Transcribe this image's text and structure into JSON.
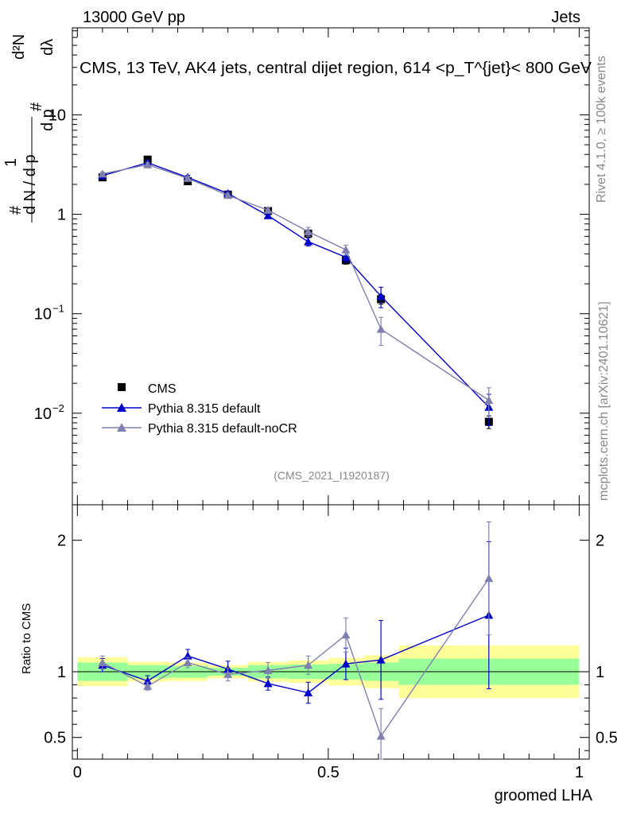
{
  "header": {
    "left": "13000 GeV pp",
    "right": "Jets"
  },
  "side_labels": {
    "rivet": "Rivet 4.1.0, ≥ 100k events",
    "mcplots": "mcplots.cern.ch [arXiv:2401.10621]"
  },
  "colors": {
    "cms": "#000000",
    "pythia_default": "#0000cc",
    "pythia_nocr": "#8080b0",
    "band_inner": "#99ff99",
    "band_outer": "#ffff99"
  },
  "chart_data": [
    {
      "type": "scatter",
      "scale": "log",
      "title": "CMS, 13 TeV, AK4 jets, central dijet region, 614 <p_T^{jet}< 800 GeV",
      "ylabel": "1/(dN/dp_T) d²N/(dp_T dλ)",
      "ylabel_parts": {
        "one": "1",
        "hash": "#",
        "top": "d²N",
        "dpt": "d p",
        "sub": "T",
        "lam": "dλ",
        "bottom": "d N / d p"
      },
      "annotation": "(CMS_2021_I1920187)",
      "ylim": [
        0.0012,
        75
      ],
      "y_ticks": [
        {
          "v": 10,
          "label": "10"
        },
        {
          "v": 1,
          "label": "1"
        },
        {
          "v": 0.1,
          "label": "10",
          "exp": "−1"
        },
        {
          "v": 0.01,
          "label": "10",
          "exp": "−2"
        }
      ],
      "legend": [
        "CMS",
        "Pythia 8.315 default",
        "Pythia 8.315 default-noCR"
      ],
      "series": [
        {
          "name": "CMS",
          "marker": "square",
          "x": [
            0.05,
            0.14,
            0.22,
            0.3,
            0.38,
            0.46,
            0.535,
            0.605,
            0.82
          ],
          "y": [
            2.35,
            3.55,
            2.15,
            1.58,
            1.08,
            0.64,
            0.345,
            0.14,
            0.0082
          ],
          "err": [
            0.12,
            0.18,
            0.11,
            0.08,
            0.06,
            0.05,
            0.03,
            0.015,
            0.0012
          ]
        },
        {
          "name": "Pythia 8.315 default",
          "marker": "triangle",
          "x": [
            0.05,
            0.14,
            0.22,
            0.3,
            0.38,
            0.46,
            0.535,
            0.605,
            0.82
          ],
          "y": [
            2.45,
            3.3,
            2.35,
            1.62,
            0.97,
            0.53,
            0.37,
            0.15,
            0.0115
          ],
          "err": [
            0.1,
            0.15,
            0.12,
            0.08,
            0.06,
            0.05,
            0.04,
            0.035,
            0.004
          ]
        },
        {
          "name": "Pythia 8.315 default-noCR",
          "marker": "triangle",
          "x": [
            0.05,
            0.14,
            0.22,
            0.3,
            0.38,
            0.46,
            0.535,
            0.605,
            0.82
          ],
          "y": [
            2.55,
            3.15,
            2.3,
            1.55,
            1.1,
            0.67,
            0.44,
            0.07,
            0.0135
          ],
          "err": [
            0.1,
            0.14,
            0.11,
            0.08,
            0.07,
            0.07,
            0.05,
            0.022,
            0.0045
          ]
        }
      ]
    },
    {
      "type": "scatter",
      "title": "",
      "xlabel": "groomed LHA",
      "ylabel": "Ratio to CMS",
      "xlim": [
        -0.01,
        1.02
      ],
      "ylim": [
        0.335,
        2.27
      ],
      "x_ticks": [
        {
          "v": 0,
          "label": "0"
        },
        {
          "v": 0.5,
          "label": "0.5"
        },
        {
          "v": 1,
          "label": "1"
        }
      ],
      "y_ticks": [
        {
          "v": 2,
          "label": "2"
        },
        {
          "v": 1,
          "label": "1"
        },
        {
          "v": 0.5,
          "label": "0.5"
        }
      ],
      "bands": {
        "bins": [
          [
            0.0,
            0.1
          ],
          [
            0.1,
            0.18
          ],
          [
            0.18,
            0.26
          ],
          [
            0.26,
            0.34
          ],
          [
            0.34,
            0.42
          ],
          [
            0.42,
            0.5
          ],
          [
            0.5,
            0.57
          ],
          [
            0.57,
            0.64
          ],
          [
            0.64,
            1.0
          ]
        ],
        "inner": [
          0.07,
          0.05,
          0.045,
          0.03,
          0.05,
          0.055,
          0.06,
          0.07,
          0.1
        ],
        "outer": [
          0.11,
          0.075,
          0.07,
          0.05,
          0.075,
          0.085,
          0.105,
          0.125,
          0.2
        ]
      },
      "series": [
        {
          "name": "Pythia 8.315 default",
          "x": [
            0.05,
            0.14,
            0.22,
            0.3,
            0.38,
            0.46,
            0.535,
            0.605,
            0.82
          ],
          "y": [
            1.05,
            0.93,
            1.12,
            1.02,
            0.91,
            0.84,
            1.06,
            1.09,
            1.43
          ],
          "err": [
            0.05,
            0.04,
            0.05,
            0.06,
            0.05,
            0.08,
            0.12,
            0.3,
            0.56
          ]
        },
        {
          "name": "Pythia 8.315 default-noCR",
          "x": [
            0.05,
            0.14,
            0.22,
            0.3,
            0.38,
            0.46,
            0.535,
            0.605,
            0.82
          ],
          "y": [
            1.07,
            0.89,
            1.07,
            0.98,
            1.01,
            1.05,
            1.28,
            0.51,
            1.71
          ],
          "err": [
            0.05,
            0.03,
            0.04,
            0.05,
            0.06,
            0.07,
            0.13,
            0.21,
            0.43
          ]
        }
      ]
    }
  ]
}
